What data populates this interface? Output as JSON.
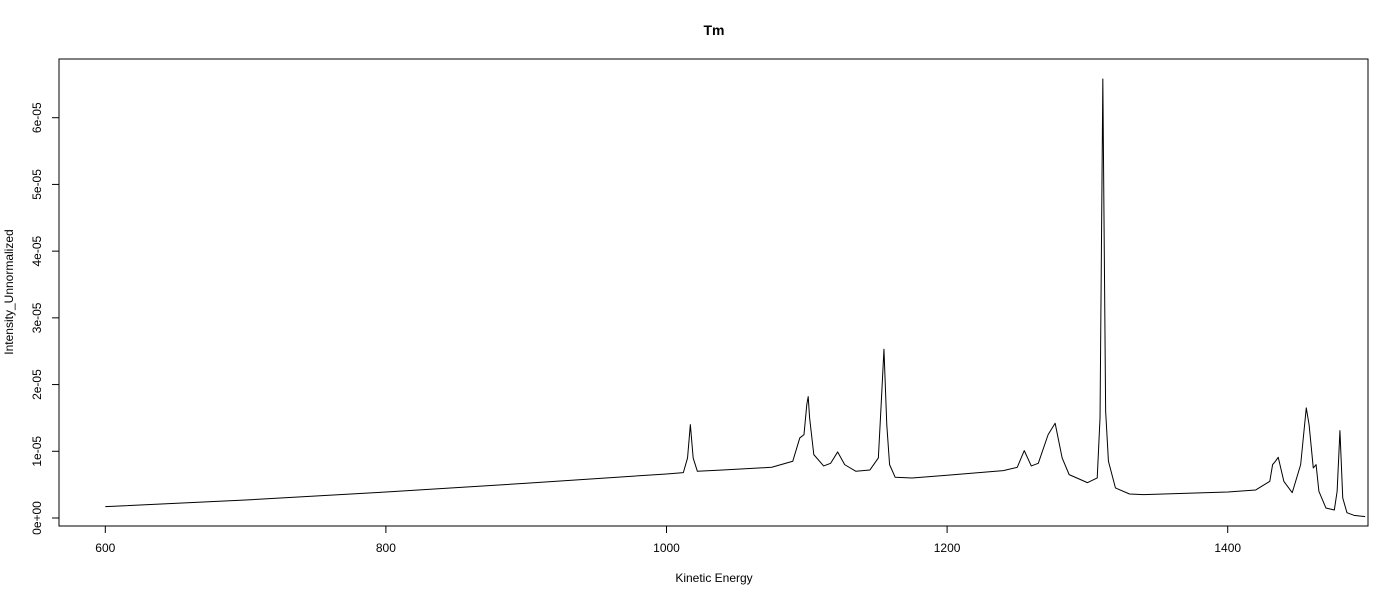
{
  "chart_data": {
    "type": "line",
    "title": "Tm",
    "xlabel": "Kinetic Energy",
    "ylabel": "Intensity_Unnormalized",
    "xlim": [
      567,
      1500
    ],
    "ylim": [
      -1.2e-06,
      6.88e-05
    ],
    "grid": false,
    "x_ticks": [
      600,
      800,
      1000,
      1200,
      1400
    ],
    "x_tick_labels": [
      "600",
      "800",
      "1000",
      "1200",
      "1400"
    ],
    "y_ticks": [
      0,
      1e-05,
      2e-05,
      3e-05,
      4e-05,
      5e-05,
      6e-05
    ],
    "y_tick_labels": [
      "0e+00",
      "1e-05",
      "2e-05",
      "3e-05",
      "4e-05",
      "5e-05",
      "6e-05"
    ],
    "series": [
      {
        "x": [
          600,
          700,
          800,
          900,
          1000,
          1012,
          1015,
          1017,
          1019,
          1022,
          1040,
          1075,
          1090,
          1095,
          1098,
          1100,
          1101,
          1102,
          1105,
          1112,
          1117,
          1122,
          1127,
          1135,
          1145,
          1151,
          1153,
          1155,
          1157,
          1159,
          1163,
          1175,
          1200,
          1240,
          1250,
          1255,
          1260,
          1265,
          1272,
          1277,
          1282,
          1287,
          1300,
          1307,
          1309,
          1311,
          1313,
          1315,
          1320,
          1330,
          1340,
          1400,
          1420,
          1430,
          1432,
          1434,
          1436,
          1440,
          1446,
          1452,
          1456,
          1458,
          1461,
          1463,
          1465,
          1470,
          1476,
          1478,
          1480,
          1482,
          1485,
          1490,
          1498
        ],
        "y": [
          1.7e-06,
          2.7e-06,
          3.9e-06,
          5.2e-06,
          6.6e-06,
          6.8e-06,
          9e-06,
          1.4e-05,
          9e-06,
          7e-06,
          7.2e-06,
          7.6e-06,
          8.5e-06,
          1.2e-05,
          1.25e-05,
          1.7e-05,
          1.82e-05,
          1.5e-05,
          9.5e-06,
          7.8e-06,
          8.2e-06,
          9.9e-06,
          8e-06,
          7e-06,
          7.2e-06,
          9e-06,
          1.7e-05,
          2.53e-05,
          1.4e-05,
          8e-06,
          6.1e-06,
          6e-06,
          6.4e-06,
          7.1e-06,
          7.6e-06,
          1.01e-05,
          7.8e-06,
          8.2e-06,
          1.25e-05,
          1.42e-05,
          9e-06,
          6.5e-06,
          5.3e-06,
          6e-06,
          1.5e-05,
          6.58e-05,
          1.6e-05,
          8.5e-06,
          4.5e-06,
          3.6e-06,
          3.5e-06,
          3.9e-06,
          4.2e-06,
          5.5e-06,
          8e-06,
          8.5e-06,
          9.1e-06,
          5.5e-06,
          3.8e-06,
          8e-06,
          1.65e-05,
          1.4e-05,
          7.5e-06,
          8e-06,
          4e-06,
          1.5e-06,
          1.2e-06,
          4e-06,
          1.31e-05,
          3e-06,
          8e-07,
          4e-07,
          2e-07
        ]
      }
    ]
  }
}
